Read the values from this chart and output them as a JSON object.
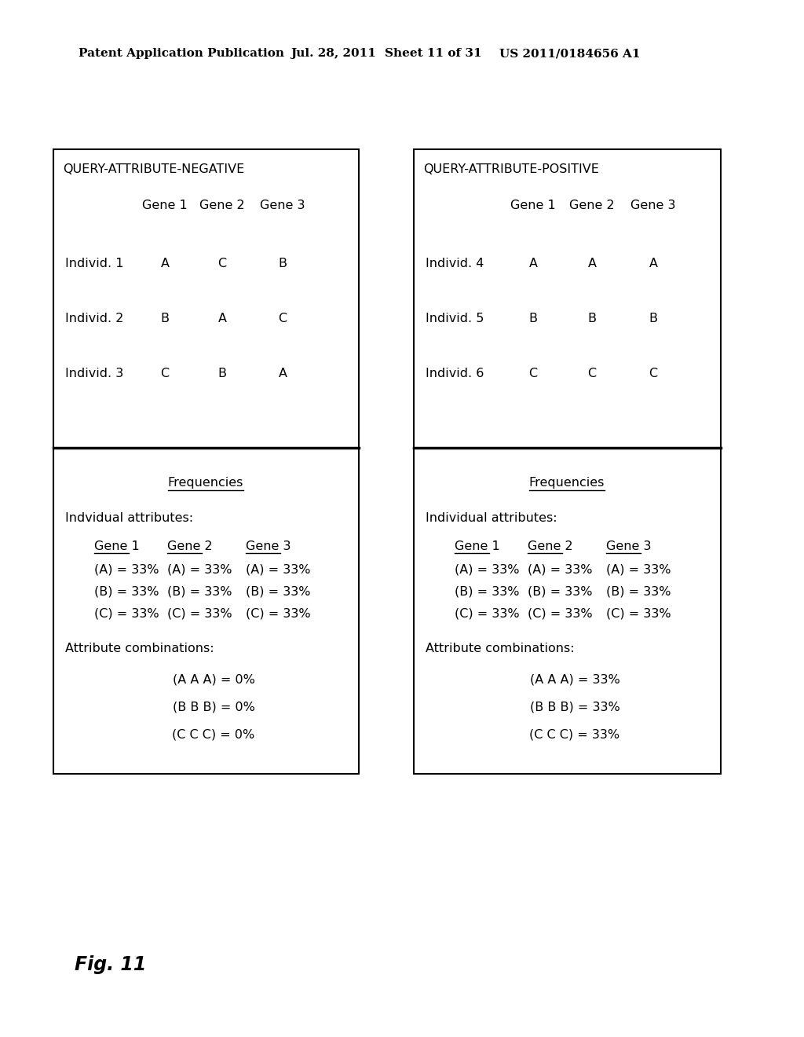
{
  "bg_color": "#ffffff",
  "text_color": "#000000",
  "header_text": "Patent Application Publication",
  "header_date": "Jul. 28, 2011",
  "header_sheet": "Sheet 11 of 31",
  "header_patent": "US 2011/0184656 A1",
  "fig_label": "Fig. 11",
  "left_box": {
    "title": "QUERY-ATTRIBUTE-NEGATIVE",
    "genes": [
      "Gene 1",
      "Gene 2",
      "Gene 3"
    ],
    "individuals": [
      {
        "name": "Individ. 1",
        "vals": [
          "A",
          "C",
          "B"
        ]
      },
      {
        "name": "Individ. 2",
        "vals": [
          "B",
          "A",
          "C"
        ]
      },
      {
        "name": "Individ. 3",
        "vals": [
          "C",
          "B",
          "A"
        ]
      }
    ],
    "freq_title": "Frequencies",
    "indiv_attr_label": "Indvidual attributes:",
    "gene_labels": [
      "Gene 1",
      "Gene 2",
      "Gene 3"
    ],
    "freq_rows": [
      [
        "(A) = 33%",
        "(A) = 33%",
        "(A) = 33%"
      ],
      [
        "(B) = 33%",
        "(B) = 33%",
        "(B) = 33%"
      ],
      [
        "(C) = 33%",
        "(C) = 33%",
        "(C) = 33%"
      ]
    ],
    "attr_comb_label": "Attribute combinations:",
    "attr_combs": [
      "(A A A) = 0%",
      "(B B B) = 0%",
      "(C C C) = 0%"
    ]
  },
  "right_box": {
    "title": "QUERY-ATTRIBUTE-POSITIVE",
    "genes": [
      "Gene 1",
      "Gene 2",
      "Gene 3"
    ],
    "individuals": [
      {
        "name": "Individ. 4",
        "vals": [
          "A",
          "A",
          "A"
        ]
      },
      {
        "name": "Individ. 5",
        "vals": [
          "B",
          "B",
          "B"
        ]
      },
      {
        "name": "Individ. 6",
        "vals": [
          "C",
          "C",
          "C"
        ]
      }
    ],
    "freq_title": "Frequencies",
    "indiv_attr_label": "Individual attributes:",
    "gene_labels": [
      "Gene 1",
      "Gene 2",
      "Gene 3"
    ],
    "freq_rows": [
      [
        "(A) = 33%",
        "(A) = 33%",
        "(A) = 33%"
      ],
      [
        "(B) = 33%",
        "(B) = 33%",
        "(B) = 33%"
      ],
      [
        "(C) = 33%",
        "(C) = 33%",
        "(C) = 33%"
      ]
    ],
    "attr_comb_label": "Attribute combinations:",
    "attr_combs": [
      "(A A A) = 33%",
      "(B B B) = 33%",
      "(C C C) = 33%"
    ]
  }
}
